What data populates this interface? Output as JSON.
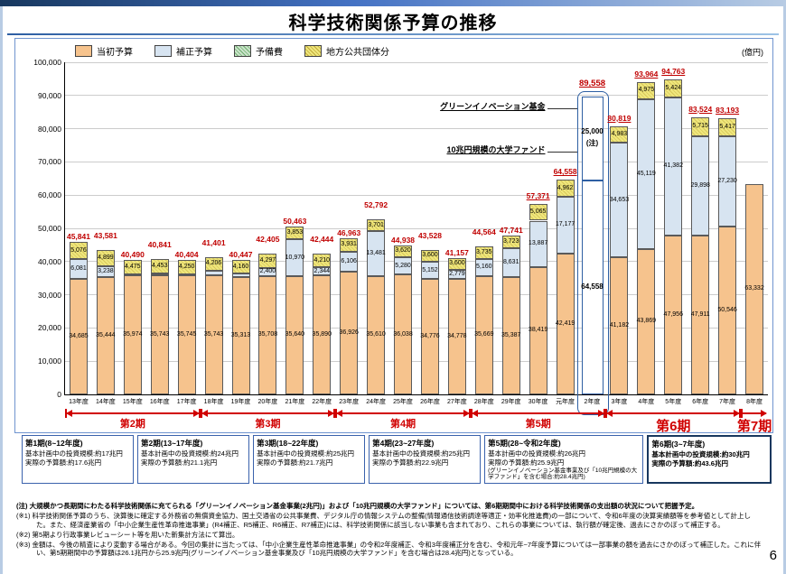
{
  "slide": {
    "title": "科学技術関係予算の推移",
    "page_number": "6"
  },
  "legend": [
    {
      "key": "initial",
      "label": "当初予算"
    },
    {
      "key": "supp",
      "label": "補正予算"
    },
    {
      "key": "reserve",
      "label": "予備費"
    },
    {
      "key": "local",
      "label": "地方公共団体分"
    }
  ],
  "colors": {
    "initial": "#F6C38D",
    "supp": "#D7E4F1",
    "reserve": "#CBE4CB",
    "local": "#EFE77D",
    "accent_blue": "#2E5FA3",
    "total_red": "#C00000",
    "period_red": "#D00000"
  },
  "chart_data": {
    "type": "bar",
    "stacked": true,
    "title": "科学技術関係予算の推移",
    "unit_label": "(億円)",
    "ylim": [
      0,
      100000
    ],
    "ytick_step": 10000,
    "grid": true,
    "annotations": {
      "green_fund": "グリーンイノベーション基金",
      "univ_fund": "10兆円規模の大学ファンド"
    },
    "years": [
      {
        "label": "13年度",
        "total": "45,841",
        "underline": false,
        "segments": [
          {
            "v": 34685,
            "k": "initial",
            "t": "34,685"
          },
          {
            "v": 6081,
            "k": "supp",
            "t": "6,081"
          },
          {
            "v": 5076,
            "k": "local",
            "t": "5,076"
          }
        ]
      },
      {
        "label": "14年度",
        "total": "43,581",
        "underline": false,
        "segments": [
          {
            "v": 35444,
            "k": "initial",
            "t": "35,444"
          },
          {
            "v": 3238,
            "k": "supp",
            "t": "3,238"
          },
          {
            "v": 4899,
            "k": "local",
            "t": "4,899"
          }
        ]
      },
      {
        "label": "15年度",
        "total": "40,490",
        "underline": false,
        "segments": [
          {
            "v": 35974,
            "k": "initial",
            "t": "35,974"
          },
          {
            "v": 41,
            "k": "supp",
            "t": null
          },
          {
            "v": 4475,
            "k": "local",
            "t": "4,475"
          }
        ]
      },
      {
        "label": "16年度",
        "total": "40,841",
        "underline": false,
        "segments": [
          {
            "v": 35743,
            "k": "initial",
            "t": "35,743"
          },
          {
            "v": 645,
            "k": "supp",
            "t": null
          },
          {
            "v": 4453,
            "k": "local",
            "t": "4,453"
          }
        ]
      },
      {
        "label": "17年度",
        "total": "40,404",
        "underline": false,
        "segments": [
          {
            "v": 35745,
            "k": "initial",
            "t": "35,745"
          },
          {
            "v": 409,
            "k": "supp",
            "t": null
          },
          {
            "v": 4250,
            "k": "local",
            "t": "4,250"
          }
        ]
      },
      {
        "label": "18年度",
        "total": "41,401",
        "underline": false,
        "segments": [
          {
            "v": 35743,
            "k": "initial",
            "t": "35,743"
          },
          {
            "v": 1452,
            "k": "supp",
            "t": null
          },
          {
            "v": 4206,
            "k": "local",
            "t": "4,206"
          }
        ]
      },
      {
        "label": "19年度",
        "total": "40,447",
        "underline": false,
        "segments": [
          {
            "v": 35313,
            "k": "initial",
            "t": "35,313"
          },
          {
            "v": 974,
            "k": "supp",
            "t": null
          },
          {
            "v": 4160,
            "k": "local",
            "t": "4,160"
          }
        ]
      },
      {
        "label": "20年度",
        "total": "42,405",
        "underline": false,
        "segments": [
          {
            "v": 35708,
            "k": "initial",
            "t": "35,708"
          },
          {
            "v": 2400,
            "k": "supp",
            "t": "2,400"
          },
          {
            "v": 4297,
            "k": "local",
            "t": "4,297"
          }
        ]
      },
      {
        "label": "21年度",
        "total": "50,463",
        "underline": false,
        "segments": [
          {
            "v": 35640,
            "k": "initial",
            "t": "35,640"
          },
          {
            "v": 10970,
            "k": "supp",
            "t": "10,970"
          },
          {
            "v": 3853,
            "k": "local",
            "t": "3,853"
          }
        ]
      },
      {
        "label": "22年度",
        "total": "42,444",
        "underline": false,
        "segments": [
          {
            "v": 35890,
            "k": "initial",
            "t": "35,890"
          },
          {
            "v": 2344,
            "k": "supp",
            "t": "2,344"
          },
          {
            "v": 4210,
            "k": "local",
            "t": "4,210"
          }
        ]
      },
      {
        "label": "23年度",
        "total": "46,963",
        "underline": false,
        "segments": [
          {
            "v": 36926,
            "k": "initial",
            "t": "36,926"
          },
          {
            "v": 6106,
            "k": "supp",
            "t": "6,106"
          },
          {
            "v": 3931,
            "k": "local",
            "t": "3,931"
          }
        ]
      },
      {
        "label": "24年度",
        "total": "52,792",
        "underline": false,
        "segments": [
          {
            "v": 35610,
            "k": "initial",
            "t": "35,610"
          },
          {
            "v": 13481,
            "k": "supp",
            "t": "13,481"
          },
          {
            "v": 3701,
            "k": "local",
            "t": "3,701"
          }
        ]
      },
      {
        "label": "25年度",
        "total": "44,938",
        "underline": false,
        "segments": [
          {
            "v": 36038,
            "k": "initial",
            "t": "36,038"
          },
          {
            "v": 5280,
            "k": "supp",
            "t": "5,280"
          },
          {
            "v": 3620,
            "k": "local",
            "t": "3,620"
          }
        ]
      },
      {
        "label": "26年度",
        "total": "43,528",
        "underline": false,
        "segments": [
          {
            "v": 34776,
            "k": "initial",
            "t": "34,776"
          },
          {
            "v": 5152,
            "k": "supp",
            "t": "5,152"
          },
          {
            "v": 3600,
            "k": "local",
            "t": "3,600"
          }
        ]
      },
      {
        "label": "27年度",
        "total": "41,157",
        "underline": false,
        "segments": [
          {
            "v": 34778,
            "k": "initial",
            "t": "34,778"
          },
          {
            "v": 2779,
            "k": "supp",
            "t": "2,779"
          },
          {
            "v": 3600,
            "k": "local",
            "t": "3,600"
          }
        ]
      },
      {
        "label": "28年度",
        "total": "44,564",
        "underline": false,
        "segments": [
          {
            "v": 35669,
            "k": "initial",
            "t": "35,669"
          },
          {
            "v": 5160,
            "k": "supp",
            "t": "5,160"
          },
          {
            "v": 3735,
            "k": "local",
            "t": "3,735"
          }
        ]
      },
      {
        "label": "29年度",
        "total": "47,741",
        "underline": false,
        "segments": [
          {
            "v": 35387,
            "k": "initial",
            "t": "35,387"
          },
          {
            "v": 8631,
            "k": "supp",
            "t": "8,631"
          },
          {
            "v": 3723,
            "k": "local",
            "t": "3,723"
          }
        ]
      },
      {
        "label": "30年度",
        "total": "57,371",
        "underline": true,
        "segments": [
          {
            "v": 38419,
            "k": "initial",
            "t": "38,419"
          },
          {
            "v": 13887,
            "k": "supp",
            "t": "13,887"
          },
          {
            "v": 5065,
            "k": "local",
            "t": "5,065"
          }
        ]
      },
      {
        "label": "元年度",
        "total": "64,558",
        "underline": true,
        "segments": [
          {
            "v": 42419,
            "k": "initial",
            "t": "42,419"
          },
          {
            "v": 17177,
            "k": "supp",
            "t": "17,177"
          },
          {
            "v": 4962,
            "k": "local",
            "t": "4,962"
          }
        ]
      },
      {
        "label": "2年度",
        "total": "89,558",
        "underline": true,
        "highlight": true,
        "segments": [
          {
            "v": 64558,
            "k": "highlight",
            "t": "64,558"
          },
          {
            "v": 25000,
            "k": "highlight",
            "t": "25,000",
            "t2": "(注)"
          }
        ]
      },
      {
        "label": "3年度",
        "total": "80,819",
        "underline": true,
        "segments": [
          {
            "v": 41182,
            "k": "initial",
            "t": "41,182"
          },
          {
            "v": 34653,
            "k": "supp",
            "t": "34,653"
          },
          {
            "v": 4983,
            "k": "local",
            "t": "4,983"
          }
        ]
      },
      {
        "label": "4年度",
        "total": "93,964",
        "underline": true,
        "segments": [
          {
            "v": 43869,
            "k": "initial",
            "t": "43,869"
          },
          {
            "v": 45119,
            "k": "supp",
            "t": "45,119"
          },
          {
            "v": 4975,
            "k": "local",
            "t": "4,975"
          }
        ]
      },
      {
        "label": "5年度",
        "total": "94,763",
        "underline": true,
        "segments": [
          {
            "v": 47956,
            "k": "initial",
            "t": "47,956"
          },
          {
            "v": 41382,
            "k": "supp",
            "t": "41,382"
          },
          {
            "v": 5424,
            "k": "local",
            "t": "5,424"
          }
        ]
      },
      {
        "label": "6年度",
        "total": "83,524",
        "underline": true,
        "segments": [
          {
            "v": 47911,
            "k": "initial",
            "t": "47,911"
          },
          {
            "v": 29898,
            "k": "supp",
            "t": "29,898"
          },
          {
            "v": 5715,
            "k": "local",
            "t": "5,715"
          }
        ]
      },
      {
        "label": "7年度",
        "total": "83,193",
        "underline": true,
        "segments": [
          {
            "v": 50546,
            "k": "initial",
            "t": "50,546"
          },
          {
            "v": 27230,
            "k": "supp",
            "t": "27,230"
          },
          {
            "v": 5417,
            "k": "local",
            "t": "5,417"
          }
        ]
      },
      {
        "label": "8年度",
        "total": null,
        "underline": false,
        "segments": [
          {
            "v": 63332,
            "k": "initial",
            "t": "63,332"
          }
        ]
      }
    ],
    "periods": [
      {
        "label": "第2期",
        "from": 0,
        "to": 4,
        "big": false,
        "open": false
      },
      {
        "label": "第3期",
        "from": 5,
        "to": 9,
        "big": false,
        "open": false
      },
      {
        "label": "第4期",
        "from": 10,
        "to": 14,
        "big": false,
        "open": false
      },
      {
        "label": "第5期",
        "from": 15,
        "to": 19,
        "big": false,
        "open": false
      },
      {
        "label": "第6期",
        "from": 20,
        "to": 24,
        "big": true,
        "open": false
      },
      {
        "label": "第7期",
        "from": 25,
        "to": 25,
        "big": true,
        "open": true
      }
    ]
  },
  "plan_boxes": [
    {
      "title": "第1期(8~12年度)",
      "lines": [
        "基本計画中の投資規模:約17兆円",
        "実際の予算額:約17.6兆円"
      ]
    },
    {
      "title": "第2期(13~17年度)",
      "lines": [
        "基本計画中の投資規模:約24兆円",
        "実際の予算額:約21.1兆円"
      ]
    },
    {
      "title": "第3期(18~22年度)",
      "lines": [
        "基本計画中の投資規模:約25兆円",
        "実際の予算額:約21.7兆円"
      ]
    },
    {
      "title": "第4期(23~27年度)",
      "lines": [
        "基本計画中の投資規模:約25兆円",
        "実際の予算額:約22.9兆円"
      ]
    },
    {
      "title": "第5期(28~令和2年度)",
      "lines": [
        "基本計画中の投資規模:約26兆円",
        "実際の予算額:約25.9兆円",
        "(グリーンイノベーション基金事業及び「10兆円規模の大学ファンド」を含む場合:約28.4兆円)"
      ]
    },
    {
      "title": "第6期(3~7年度)",
      "lines": [
        "基本計画中の投資規模:約30兆円",
        "実際の予算額:約43.6兆円"
      ]
    }
  ],
  "notes": [
    "(注) 大規模かつ長期間にわたる科学技術関係に充てられる「グリーンイノベーション基金事業(2兆円)」および「10兆円規模の大学ファンド」については、第6期期間中における科学技術関係の支出額の状況について把握予定。",
    "(※1) 科学技術関係予算のうち、決算後に確定する外務省の無償資金協力、国土交通省の公共事業費、デジタル庁の情報システムの整備(情報通信技術調達等適正・効率化推進費)の一部について、令和6年度の決算実績額等を参考値として計上した。また、経済産業省の「中小企業生産性革命推進事業」(R4補正、R5補正、R6補正、R7補正)には、科学技術関係に該当しない事業も含まれており、これらの事業については、執行額が確定後、過去にさかのぼって補正する。",
    "(※2) 第5期より行政事業レビューシート等を用いた新集計方法にて算出。",
    "(※3) 金額は、今後の精査により変動する場合がある。今回の集計に当たっては、「中小企業生産性革命推進事業」の令和2年度補正、令和3年度補正分を含む、令和元年~7年度予算については一部事業の額を過去にさかのぼって補正した。これに伴い、第5期期間中の予算額は26.1兆円から25.9兆円(グリーンイノベーション基金事業及び「10兆円規模の大学ファンド」を含む場合は28.4兆円)となっている。"
  ]
}
